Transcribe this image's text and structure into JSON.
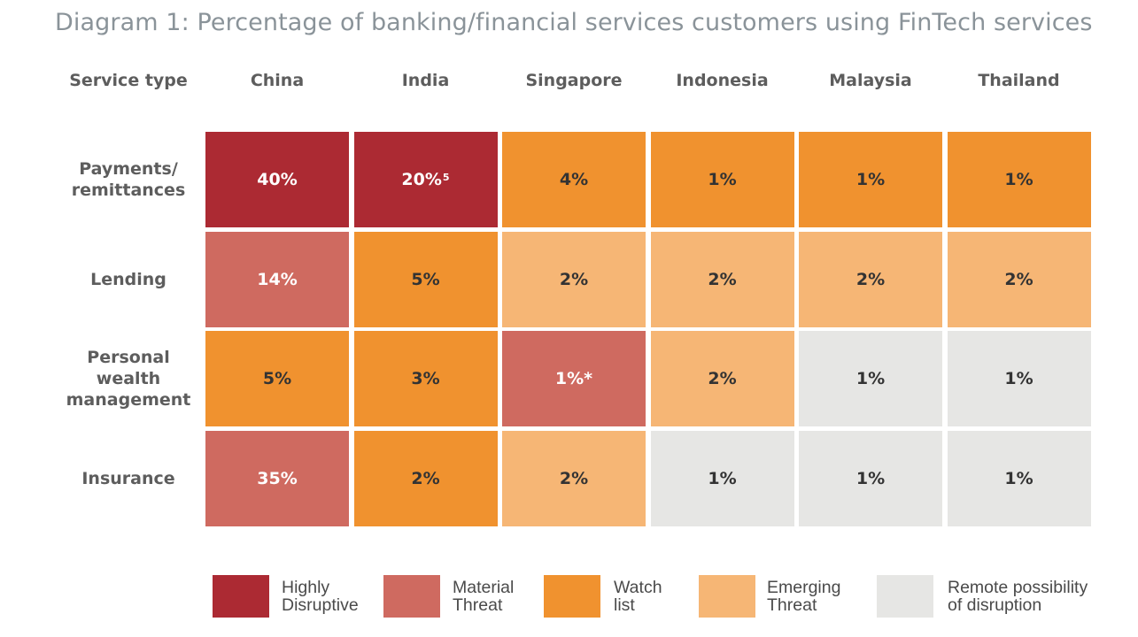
{
  "title": "Diagram 1: Percentage of banking/financial services customers using FinTech services",
  "colors": {
    "highly_disruptive": "#ac2a33",
    "material_threat": "#cf6a60",
    "watch_list": "#f0922f",
    "emerging_threat": "#f6b675",
    "remote_possibility": "#e6e6e4"
  },
  "chart_data": {
    "type": "table",
    "row_header_label": "Service type",
    "columns": [
      "China",
      "India",
      "Singapore",
      "Indonesia",
      "Malaysia",
      "Thailand"
    ],
    "rows": [
      {
        "label_lines": [
          "Payments/",
          "remittances"
        ],
        "cells": [
          {
            "text": "40%",
            "sup": "",
            "level": "highly_disruptive"
          },
          {
            "text": "20%",
            "sup": "5",
            "level": "highly_disruptive"
          },
          {
            "text": "4%",
            "sup": "",
            "level": "watch_list"
          },
          {
            "text": "1%",
            "sup": "",
            "level": "watch_list"
          },
          {
            "text": "1%",
            "sup": "",
            "level": "watch_list"
          },
          {
            "text": "1%",
            "sup": "",
            "level": "watch_list"
          }
        ]
      },
      {
        "label_lines": [
          "Lending"
        ],
        "cells": [
          {
            "text": "14%",
            "sup": "",
            "level": "material_threat"
          },
          {
            "text": "5%",
            "sup": "",
            "level": "watch_list"
          },
          {
            "text": "2%",
            "sup": "",
            "level": "emerging_threat"
          },
          {
            "text": "2%",
            "sup": "",
            "level": "emerging_threat"
          },
          {
            "text": "2%",
            "sup": "",
            "level": "emerging_threat"
          },
          {
            "text": "2%",
            "sup": "",
            "level": "emerging_threat"
          }
        ]
      },
      {
        "label_lines": [
          "Personal",
          "wealth",
          "management"
        ],
        "cells": [
          {
            "text": "5%",
            "sup": "",
            "level": "watch_list"
          },
          {
            "text": "3%",
            "sup": "",
            "level": "watch_list"
          },
          {
            "text": "1%*",
            "sup": "",
            "level": "material_threat"
          },
          {
            "text": "2%",
            "sup": "",
            "level": "emerging_threat"
          },
          {
            "text": "1%",
            "sup": "",
            "level": "remote_possibility"
          },
          {
            "text": "1%",
            "sup": "",
            "level": "remote_possibility"
          }
        ]
      },
      {
        "label_lines": [
          "Insurance"
        ],
        "cells": [
          {
            "text": "35%",
            "sup": "",
            "level": "material_threat"
          },
          {
            "text": "2%",
            "sup": "",
            "level": "watch_list"
          },
          {
            "text": "2%",
            "sup": "",
            "level": "emerging_threat"
          },
          {
            "text": "1%",
            "sup": "",
            "level": "remote_possibility"
          },
          {
            "text": "1%",
            "sup": "",
            "level": "remote_possibility"
          },
          {
            "text": "1%",
            "sup": "",
            "level": "remote_possibility"
          }
        ]
      }
    ],
    "legend": [
      {
        "key": "highly_disruptive",
        "lines": [
          "Highly",
          "Disruptive"
        ]
      },
      {
        "key": "material_threat",
        "lines": [
          "Material",
          "Threat"
        ]
      },
      {
        "key": "watch_list",
        "lines": [
          "Watch",
          "list"
        ]
      },
      {
        "key": "emerging_threat",
        "lines": [
          "Emerging",
          "Threat"
        ]
      },
      {
        "key": "remote_possibility",
        "lines": [
          "Remote possibility",
          "of disruption"
        ]
      }
    ]
  }
}
